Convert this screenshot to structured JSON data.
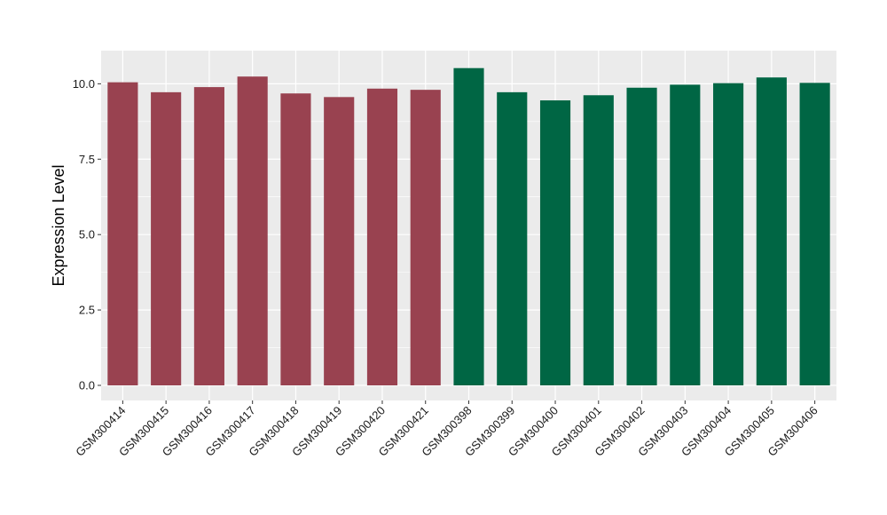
{
  "chart_data": {
    "type": "bar",
    "title": "",
    "xlabel": "",
    "ylabel": "Expression Level",
    "ylim": [
      0,
      11.1
    ],
    "yticks": [
      0,
      2.5,
      5,
      7.5,
      10
    ],
    "ytick_labels": [
      "0.0",
      "2.5",
      "5.0",
      "7.5",
      "10.0"
    ],
    "grid": true,
    "legend": "none",
    "categories": [
      "GSM300414",
      "GSM300415",
      "GSM300416",
      "GSM300417",
      "GSM300418",
      "GSM300419",
      "GSM300420",
      "GSM300421",
      "GSM300398",
      "GSM300399",
      "GSM300400",
      "GSM300401",
      "GSM300402",
      "GSM300403",
      "GSM300404",
      "GSM300405",
      "GSM300406"
    ],
    "values": [
      10.05,
      9.72,
      9.89,
      10.24,
      9.68,
      9.56,
      9.84,
      9.8,
      10.52,
      9.72,
      9.45,
      9.62,
      9.87,
      9.97,
      10.02,
      10.21,
      10.03
    ],
    "bar_colors": [
      "#994250",
      "#994250",
      "#994250",
      "#994250",
      "#994250",
      "#994250",
      "#994250",
      "#994250",
      "#006644",
      "#006644",
      "#006644",
      "#006644",
      "#006644",
      "#006644",
      "#006644",
      "#006644",
      "#006644"
    ],
    "panel_background": "#EBEBEB",
    "grid_color": "#FFFFFF"
  }
}
